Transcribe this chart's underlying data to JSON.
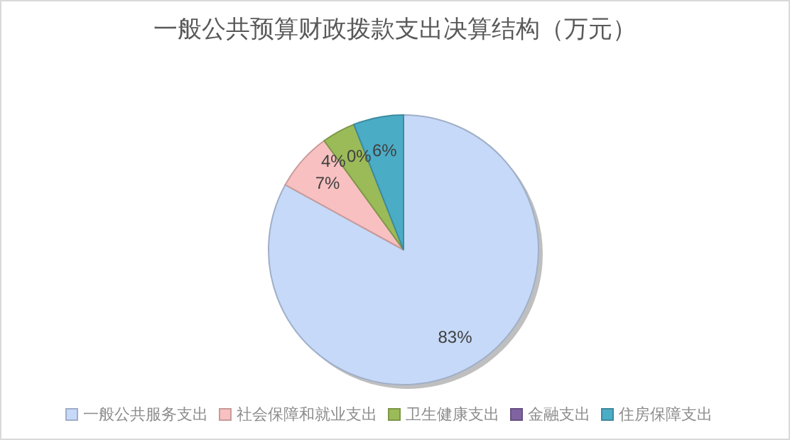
{
  "chart_data": {
    "type": "pie",
    "title": "一般公共预算财政拨款支出决算结构（万元）",
    "categories": [
      "一般公共服务支出",
      "社会保障和就业支出",
      "卫生健康支出",
      "金融支出",
      "住房保障支出"
    ],
    "values": [
      83,
      7,
      4,
      0,
      6
    ],
    "colors": [
      "#c6d9f8",
      "#f8c0c0",
      "#9bbb59",
      "#8064a2",
      "#4bacc6"
    ],
    "value_labels": [
      "83%",
      "7%",
      "4%",
      "0%",
      "6%"
    ],
    "legend": "bottom"
  }
}
